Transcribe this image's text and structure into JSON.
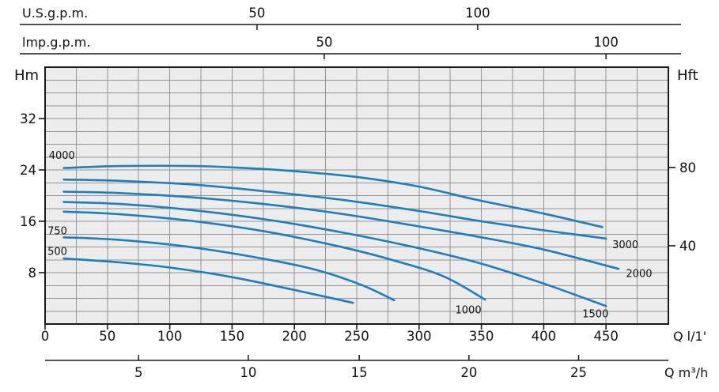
{
  "colors": {
    "curve": "#1a7fc1",
    "plot_bg": "#ececec",
    "grid": "#949494",
    "axis": "#1a1a1a",
    "text": "#111111"
  },
  "chart_data": {
    "type": "line",
    "x_axis": {
      "label": "Q l/1'",
      "min": 0,
      "max": 500,
      "major_tick_step": 50,
      "minor_tick_step": 25,
      "tick_values": [
        0,
        50,
        100,
        150,
        200,
        250,
        300,
        350,
        400,
        450
      ],
      "tick_labels": [
        "0",
        "50",
        "100",
        "150",
        "200",
        "250",
        "300",
        "350",
        "400",
        "450"
      ]
    },
    "y_axis": {
      "label": "Hm",
      "min": 0,
      "max": 40,
      "major_tick_step": 8,
      "minor_tick_step": 2,
      "tick_values": [
        8,
        16,
        24,
        32
      ],
      "tick_labels": [
        "8",
        "16",
        "24",
        "32"
      ]
    },
    "y2_axis": {
      "label": "Hft",
      "ticks": [
        {
          "label": "40",
          "hm": 12.19
        },
        {
          "label": "80",
          "hm": 24.38
        }
      ]
    },
    "top_axis_usgpm": {
      "label": "U.S.g.p.m.",
      "ticks": [
        {
          "label": "50",
          "q": 170
        },
        {
          "label": "100",
          "q": 347
        }
      ]
    },
    "top_axis_impgpm": {
      "label": "lmp.g.p.m.",
      "ticks": [
        {
          "label": "50",
          "q": 224
        },
        {
          "label": "100",
          "q": 450
        }
      ]
    },
    "bottom_axis_m3h": {
      "label": "Q m³/h",
      "ticks": [
        {
          "label": "5",
          "q": 75
        },
        {
          "label": "10",
          "q": 163
        },
        {
          "label": "15",
          "q": 252
        },
        {
          "label": "20",
          "q": 340
        },
        {
          "label": "25",
          "q": 428
        }
      ]
    },
    "series": [
      {
        "name": "4000",
        "points": [
          [
            15,
            24.3
          ],
          [
            60,
            24.6
          ],
          [
            120,
            24.6
          ],
          [
            160,
            24.3
          ],
          [
            200,
            23.8
          ],
          [
            250,
            22.9
          ],
          [
            300,
            21.4
          ],
          [
            345,
            19.4
          ],
          [
            400,
            17.2
          ],
          [
            447,
            15.1
          ]
        ],
        "label": {
          "text": "4000",
          "q": 3,
          "h": 26.3,
          "anchor": "start"
        }
      },
      {
        "name": "3000",
        "points": [
          [
            15,
            22.5
          ],
          [
            60,
            22.3
          ],
          [
            120,
            21.7
          ],
          [
            180,
            20.6
          ],
          [
            240,
            19.3
          ],
          [
            300,
            17.6
          ],
          [
            350,
            16.0
          ],
          [
            400,
            14.6
          ],
          [
            450,
            13.3
          ]
        ],
        "label": {
          "text": "3000",
          "q": 455,
          "h": 12.4,
          "anchor": "start"
        }
      },
      {
        "name": "2000",
        "points": [
          [
            15,
            20.6
          ],
          [
            60,
            20.4
          ],
          [
            120,
            19.7
          ],
          [
            180,
            18.6
          ],
          [
            240,
            17.1
          ],
          [
            300,
            15.2
          ],
          [
            350,
            13.5
          ],
          [
            400,
            11.6
          ],
          [
            460,
            8.6
          ]
        ],
        "label": {
          "text": "2000",
          "q": 466,
          "h": 7.9,
          "anchor": "start"
        }
      },
      {
        "name": "1500",
        "points": [
          [
            15,
            19.0
          ],
          [
            60,
            18.7
          ],
          [
            120,
            17.7
          ],
          [
            180,
            16.2
          ],
          [
            240,
            14.2
          ],
          [
            300,
            11.8
          ],
          [
            350,
            9.4
          ],
          [
            400,
            6.3
          ],
          [
            450,
            2.8
          ]
        ],
        "label": {
          "text": "1500",
          "q": 452,
          "h": 1.6,
          "anchor": "end"
        }
      },
      {
        "name": "1000",
        "points": [
          [
            15,
            17.5
          ],
          [
            60,
            17.1
          ],
          [
            120,
            16.0
          ],
          [
            180,
            14.3
          ],
          [
            240,
            11.9
          ],
          [
            280,
            9.9
          ],
          [
            320,
            7.4
          ],
          [
            353,
            3.8
          ]
        ],
        "label": {
          "text": "1000",
          "q": 350,
          "h": 2.2,
          "anchor": "end"
        }
      },
      {
        "name": "750",
        "points": [
          [
            15,
            13.5
          ],
          [
            60,
            13.1
          ],
          [
            120,
            11.9
          ],
          [
            180,
            10.0
          ],
          [
            220,
            8.3
          ],
          [
            255,
            6.0
          ],
          [
            280,
            3.7
          ]
        ],
        "label": {
          "text": "750",
          "q": 2,
          "h": 14.5,
          "anchor": "start"
        }
      },
      {
        "name": "500",
        "points": [
          [
            15,
            10.2
          ],
          [
            60,
            9.6
          ],
          [
            100,
            8.8
          ],
          [
            150,
            7.3
          ],
          [
            200,
            5.3
          ],
          [
            247,
            3.3
          ]
        ],
        "label": {
          "text": "500",
          "q": 2,
          "h": 11.3,
          "anchor": "start"
        }
      }
    ]
  }
}
